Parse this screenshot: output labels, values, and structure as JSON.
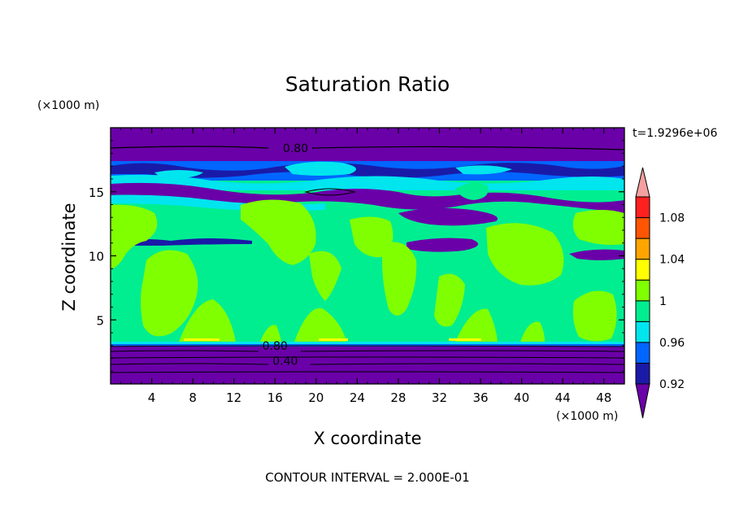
{
  "chart_data": {
    "type": "heatmap",
    "title": "Saturation Ratio",
    "xlabel": "X coordinate",
    "ylabel": "Z coordinate",
    "x_unit": "(×1000 m)",
    "y_unit": "(×1000 m)",
    "time_label": "t=1.9296e+06",
    "footer": "CONTOUR INTERVAL = 2.000E-01",
    "xlim": [
      0,
      50
    ],
    "ylim": [
      0,
      20
    ],
    "x_ticks": [
      4,
      8,
      12,
      16,
      20,
      24,
      28,
      32,
      36,
      40,
      44,
      48
    ],
    "y_ticks": [
      5,
      10,
      15
    ],
    "contour_labels": [
      {
        "text": "0.80",
        "x": 18,
        "z": 18.4
      },
      {
        "text": "0.80",
        "x": 16,
        "z": 3.0
      },
      {
        "text": "0.40",
        "x": 17,
        "z": 1.8
      }
    ],
    "colorbar": {
      "levels": [
        0.92,
        0.94,
        0.96,
        0.98,
        1.0,
        1.02,
        1.04,
        1.06,
        1.08,
        1.1
      ],
      "labels": [
        "0.92",
        "0.96",
        "1",
        "1.04",
        "1.08"
      ],
      "label_values": [
        0.92,
        0.96,
        1.0,
        1.04,
        1.08
      ],
      "colors": [
        "#6a00a8",
        "#1a1aa8",
        "#0066ff",
        "#00e5ee",
        "#00ee90",
        "#80ff00",
        "#ffff00",
        "#ffa500",
        "#ff5500",
        "#ff2020",
        "#f5a0a0"
      ]
    },
    "palette": {
      "purple": "#6a00a8",
      "navy": "#1a1aa8",
      "blue": "#0066ff",
      "cyan": "#00e5ee",
      "green": "#00ee90",
      "lime": "#80ff00",
      "yellow": "#ffff00",
      "orange": "#ffa500"
    }
  }
}
